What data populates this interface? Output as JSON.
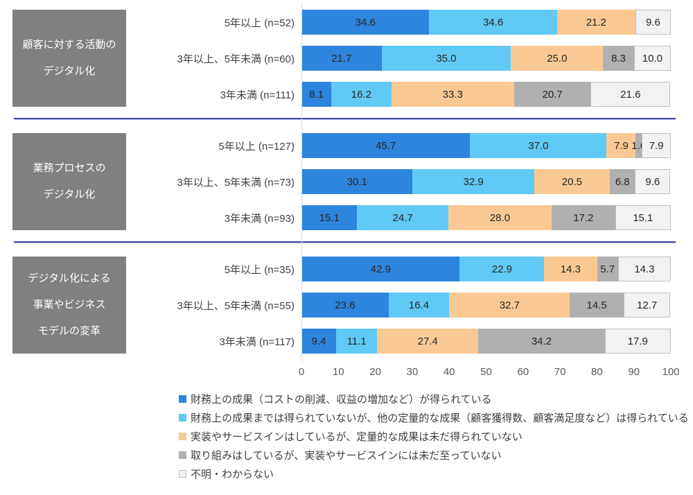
{
  "chart_data": {
    "type": "bar",
    "variant": "horizontal-stacked-100",
    "x_axis": {
      "range": [
        0,
        100
      ],
      "ticks": [
        "0",
        "10",
        "20",
        "30",
        "40",
        "50",
        "60",
        "70",
        "80",
        "90",
        "100"
      ]
    },
    "series": [
      {
        "label": "財務上の成果（コストの削減、収益の増加など）が得られている",
        "color": "#2D85DE"
      },
      {
        "label": "財務上の成果までは得られていないが、他の定量的な成果（顧客獲得数、顧客満足度など）は得られている",
        "color": "#61C9F5"
      },
      {
        "label": "実装やサービスインはしているが、定量的な成果は未だ得られていない",
        "color": "#FAC993"
      },
      {
        "label": "取り組みはしているが、実装やサービスインには未だ至っていない",
        "color": "#B0B0B0"
      },
      {
        "label": "不明・わからない",
        "color": "#F2F2F2",
        "border": "#BFBFBF"
      }
    ],
    "groups": [
      {
        "label_lines": [
          "顧客に対する活動の",
          "デジタル化"
        ],
        "rows": [
          {
            "label": "5年以上 (n=52)",
            "values": [
              34.6,
              34.6,
              21.2,
              0,
              9.6
            ]
          },
          {
            "label": "3年以上、5年未満 (n=60)",
            "values": [
              21.7,
              35.0,
              25.0,
              8.3,
              10.0
            ]
          },
          {
            "label": "3年未満 (n=111)",
            "values": [
              8.1,
              16.2,
              33.3,
              20.7,
              21.6
            ]
          }
        ]
      },
      {
        "label_lines": [
          "業務プロセスの",
          "デジタル化"
        ],
        "rows": [
          {
            "label": "5年以上 (n=127)",
            "values": [
              45.7,
              37.0,
              7.9,
              1.6,
              7.9
            ]
          },
          {
            "label": "3年以上、5年未満 (n=73)",
            "values": [
              30.1,
              32.9,
              20.5,
              6.8,
              9.6
            ]
          },
          {
            "label": "3年未満 (n=93)",
            "values": [
              15.1,
              24.7,
              28.0,
              17.2,
              15.1
            ]
          }
        ]
      },
      {
        "label_lines": [
          "デジタル化による",
          "事業やビジネス",
          "モデルの変革"
        ],
        "rows": [
          {
            "label": "5年以上 (n=35)",
            "values": [
              42.9,
              22.9,
              14.3,
              5.7,
              14.3
            ]
          },
          {
            "label": "3年以上、5年未満 (n=55)",
            "values": [
              23.6,
              16.4,
              32.7,
              14.5,
              12.7
            ]
          },
          {
            "label": "3年未満 (n=117)",
            "values": [
              9.4,
              11.1,
              27.4,
              34.2,
              17.9
            ]
          }
        ]
      }
    ]
  },
  "colors": {
    "group_box_bg": "#808080",
    "group_box_text": "#FFFFFF",
    "separator": "#3C4BA3",
    "axis_line": "#D9D9D9",
    "axis_text": "#595959",
    "value_text": "#262626",
    "label_text": "#3F3F3F"
  }
}
